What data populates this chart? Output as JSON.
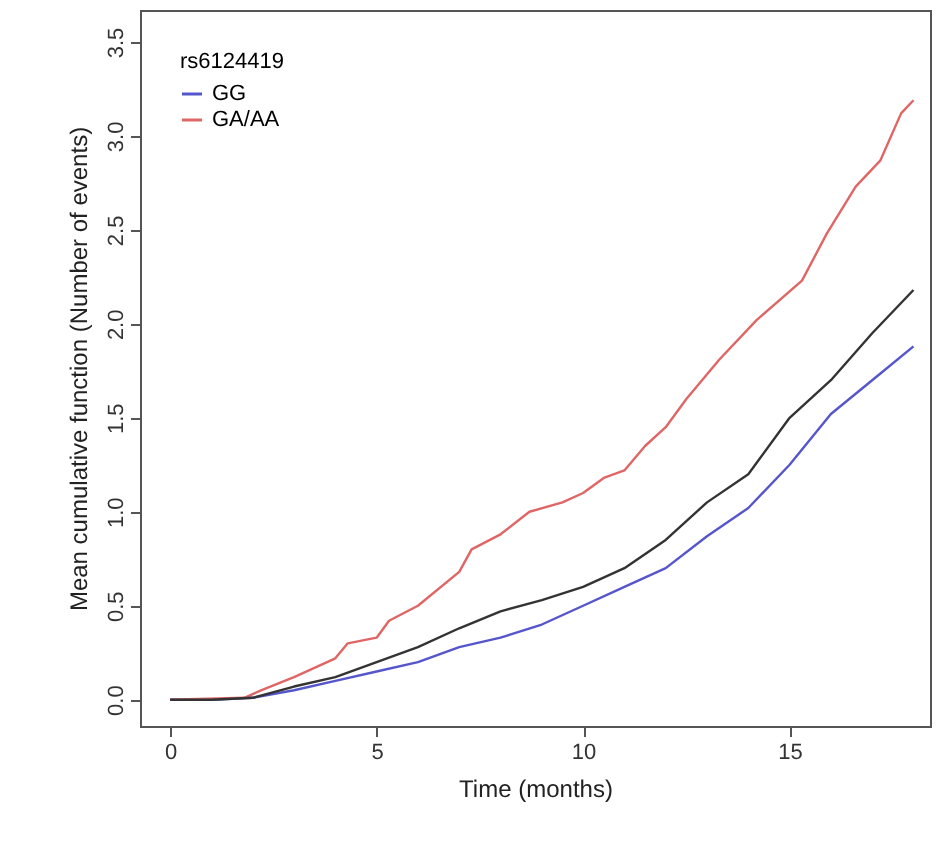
{
  "chart_data": {
    "type": "line",
    "xlabel": "Time (months)",
    "ylabel": "Mean cumulative function (Number of events)",
    "legend_title": "rs6124419",
    "legend": "top left",
    "grid": false,
    "xlim": [
      -0.73,
      18.4
    ],
    "ylim": [
      -0.14,
      3.67
    ],
    "xticks": [
      0,
      5,
      10,
      15
    ],
    "yticks": [
      {
        "value": 0,
        "label": "0.0"
      },
      0.5,
      {
        "value": 1,
        "label": "1.0"
      },
      1.5,
      {
        "value": 2,
        "label": "2.0"
      },
      2.5,
      {
        "value": 3,
        "label": "3.0"
      },
      3.5
    ],
    "x": [
      0,
      1,
      2,
      3,
      4,
      5,
      6,
      7,
      8,
      9,
      10,
      11,
      12,
      13,
      14,
      15,
      16,
      17,
      18
    ],
    "series": [
      {
        "name": "GG",
        "color": "#5555cc",
        "values": [
          0,
          0,
          0.01,
          0.05,
          0.1,
          0.15,
          0.2,
          0.28,
          0.33,
          0.4,
          0.5,
          0.6,
          0.7,
          0.87,
          1.02,
          1.25,
          1.52,
          1.7,
          1.88
        ]
      },
      {
        "name": "GA/AA",
        "color": "#e06666",
        "x": [
          0,
          1.8,
          2.2,
          3,
          4,
          4.3,
          5,
          5.3,
          6,
          7,
          7.3,
          8,
          8.7,
          9.5,
          10,
          10.5,
          11,
          11.5,
          12,
          12.5,
          13.3,
          14.2,
          15.3,
          15.9,
          16.6,
          17.2,
          17.7,
          18
        ],
        "values": [
          0,
          0.01,
          0.05,
          0.12,
          0.22,
          0.3,
          0.33,
          0.42,
          0.5,
          0.68,
          0.8,
          0.88,
          1.0,
          1.05,
          1.1,
          1.18,
          1.22,
          1.35,
          1.45,
          1.6,
          1.81,
          2.02,
          2.23,
          2.48,
          2.73,
          2.87,
          3.12,
          3.19
        ]
      },
      {
        "color": "#333333",
        "values": [
          0,
          0,
          0.01,
          0.07,
          0.12,
          0.2,
          0.28,
          0.38,
          0.47,
          0.53,
          0.6,
          0.7,
          0.85,
          1.05,
          1.2,
          1.5,
          1.7,
          1.95,
          2.18
        ]
      }
    ]
  }
}
